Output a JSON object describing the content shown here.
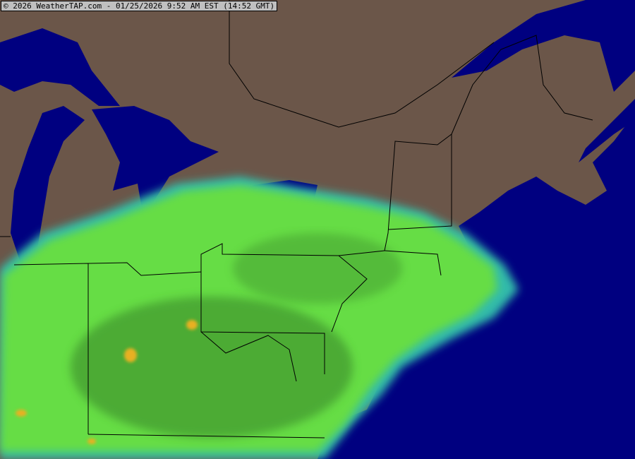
{
  "header": {
    "timestamp_label": "© 2026 WeatherTAP.com - 01/25/2026 9:52 AM EST (14:52 GMT)"
  },
  "map": {
    "type": "radar-composite",
    "colors": {
      "land": "#6b5649",
      "water": "#000080",
      "radar_light": "#66dd44",
      "radar_dark": "#3a8a2a",
      "radar_edge": "#33bbaa",
      "radar_heavy": "#e8b020",
      "borders": "#000000"
    }
  }
}
